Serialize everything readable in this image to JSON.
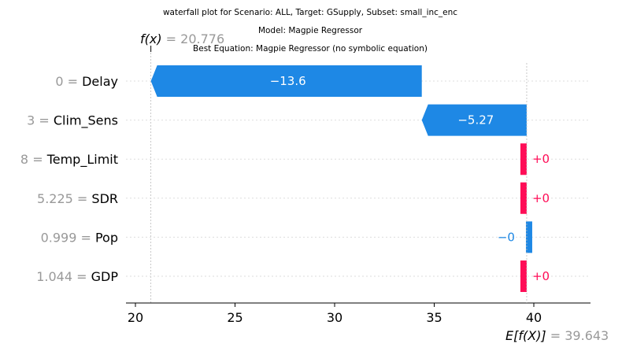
{
  "chart_data": {
    "type": "waterfall",
    "title_lines": [
      "waterfall plot for Scenario: ALL, Target: GSupply, Subset: small_inc_enc",
      "Model: Magpie Regressor",
      "Best Equation: Magpie Regressor (no symbolic equation)"
    ],
    "fx_label": "f(x)",
    "fx_value": "20.776",
    "fx": 20.776,
    "efx_label": "E[f(X)]",
    "efx_value": "39.643",
    "efx": 39.643,
    "xlim": [
      19.5,
      42.8
    ],
    "x_ticks": [
      20,
      25,
      30,
      35,
      40
    ],
    "features": [
      {
        "value": "0",
        "name": "Delay",
        "start": 34.376,
        "end": 20.776,
        "label": "−13.6",
        "positive": false,
        "label_inside": true
      },
      {
        "value": "3",
        "name": "Clim_Sens",
        "start": 39.643,
        "end": 34.376,
        "label": "−5.27",
        "positive": false,
        "label_inside": true
      },
      {
        "value": "8",
        "name": "Temp_Limit",
        "start": 39.643,
        "end": 39.643,
        "label": "+0",
        "positive": true,
        "label_inside": false
      },
      {
        "value": "5.225",
        "name": "SDR",
        "start": 39.643,
        "end": 39.643,
        "label": "+0",
        "positive": true,
        "label_inside": false
      },
      {
        "value": "0.999",
        "name": "Pop",
        "start": 39.643,
        "end": 39.643,
        "label": "−0",
        "positive": false,
        "label_inside": false
      },
      {
        "value": "1.044",
        "name": "GDP",
        "start": 39.643,
        "end": 39.643,
        "label": "+0",
        "positive": true,
        "label_inside": false
      }
    ],
    "colors": {
      "positive": "#ff0d57",
      "negative": "#1e88e5",
      "muted": "#999999"
    }
  }
}
